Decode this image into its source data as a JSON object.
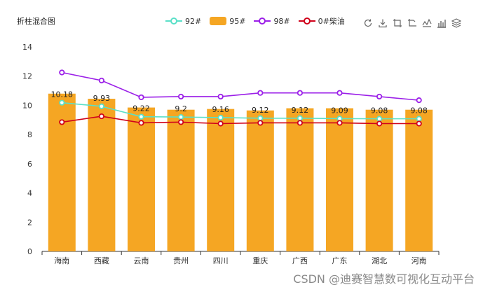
{
  "title": "折柱混合图",
  "legend": {
    "items": [
      {
        "label": "92#",
        "color": "#5ae0c8",
        "kind": "line"
      },
      {
        "label": "95#",
        "color": "#f5a623",
        "kind": "bar"
      },
      {
        "label": "98#",
        "color": "#9b1fe8",
        "kind": "line"
      },
      {
        "label": "0#柴油",
        "color": "#d0021b",
        "kind": "line"
      }
    ]
  },
  "toolbox": {
    "icons": [
      "refresh-icon",
      "download-icon",
      "data-zoom-icon",
      "zoom-reset-icon",
      "line-chart-icon",
      "bar-chart-icon",
      "stack-icon"
    ]
  },
  "watermark": "CSDN @迪赛智慧数可视化互动平台",
  "chart_data": {
    "type": "bar",
    "title": "折柱混合图",
    "categories": [
      "海南",
      "西藏",
      "云南",
      "贵州",
      "四川",
      "重庆",
      "广西",
      "广东",
      "湖北",
      "河南"
    ],
    "ylim": [
      0,
      14
    ],
    "yticks": [
      0,
      2,
      4,
      6,
      8,
      10,
      12,
      14
    ],
    "grid": false,
    "legend_position": "top-center",
    "series": [
      {
        "name": "95#",
        "type": "bar",
        "color": "#f5a623",
        "values": [
          10.8,
          10.45,
          9.85,
          9.7,
          9.75,
          9.65,
          9.8,
          9.8,
          9.7,
          9.7
        ]
      },
      {
        "name": "92#",
        "type": "line",
        "color": "#5ae0c8",
        "values": [
          10.18,
          9.93,
          9.22,
          9.2,
          9.16,
          9.12,
          9.12,
          9.09,
          9.08,
          9.08
        ],
        "labels": [
          "10.18",
          "9.93",
          "9.22",
          "9.2",
          "9.16",
          "9.12",
          "9.12",
          "9.09",
          "9.08",
          "9.08"
        ]
      },
      {
        "name": "98#",
        "type": "line",
        "color": "#9b1fe8",
        "values": [
          12.25,
          11.7,
          10.55,
          10.6,
          10.6,
          10.85,
          10.85,
          10.85,
          10.6,
          10.35
        ]
      },
      {
        "name": "0#柴油",
        "type": "line",
        "color": "#d0021b",
        "values": [
          8.85,
          9.25,
          8.8,
          8.85,
          8.75,
          8.8,
          8.8,
          8.8,
          8.75,
          8.75
        ]
      }
    ]
  }
}
